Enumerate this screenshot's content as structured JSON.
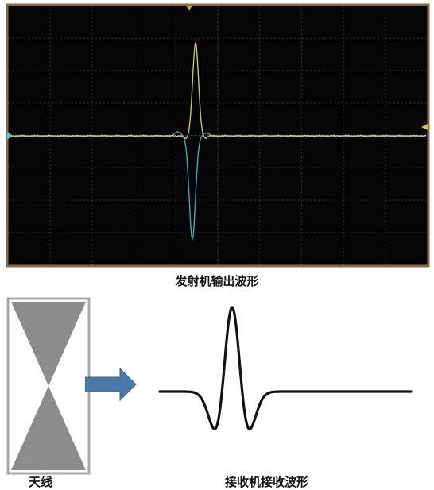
{
  "captions": {
    "transmitter_waveform": "发射机输出波形",
    "antenna": "天线",
    "receiver_waveform": "接收机接收波形"
  },
  "colors": {
    "scope_background": "#050505",
    "scope_frame": "#8a6a44",
    "grid": "#6a6a6a",
    "trace_yellow": "#c9c27a",
    "trace_cyan": "#4aa7b8",
    "antenna_fill": "#8c8c8c",
    "antenna_frame": "#a8a8a8",
    "arrow_fill": "#4a78a8",
    "rx_trace": "#111111"
  },
  "icons": {
    "antenna": "bowtie-antenna-icon",
    "arrow": "right-arrow-icon",
    "trigger_marker": "triangle-down-icon",
    "level_marker": "triangle-left-icon"
  }
}
